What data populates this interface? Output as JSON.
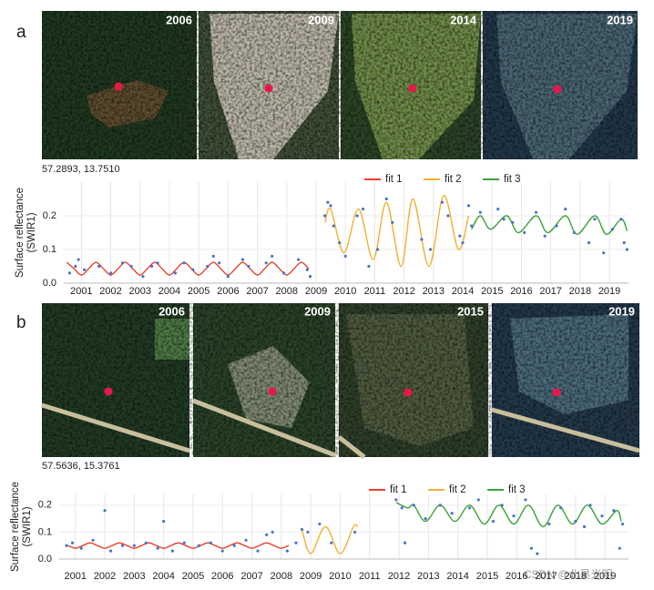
{
  "panels": [
    {
      "label": "a",
      "images": [
        "2006",
        "2009",
        "2014",
        "2019"
      ],
      "coordinates": "57.2893, 13.7510"
    },
    {
      "label": "b",
      "images": [
        "2006",
        "2009",
        "2015",
        "2019"
      ],
      "coordinates": "57.5636, 15.3761"
    }
  ],
  "chart_data": [
    {
      "type": "line",
      "y_label": [
        "Surface reflectance",
        "(SWIR1)"
      ],
      "xlim": [
        2000.4,
        2019.65
      ],
      "ylim": [
        0,
        0.3
      ],
      "xticks": [
        2001,
        2002,
        2003,
        2004,
        2005,
        2006,
        2007,
        2008,
        2009,
        2010,
        2011,
        2012,
        2013,
        2014,
        2015,
        2016,
        2017,
        2018,
        2019
      ],
      "yticks": [
        {
          "value": 0,
          "label": "0.0"
        },
        0.1,
        0.2
      ],
      "grid": true,
      "legend": "top-right",
      "series": [
        {
          "name": "fit 1",
          "color": "#e8412c",
          "x": [
            2000.5,
            2000.75,
            2001,
            2001.25,
            2001.5,
            2001.75,
            2002,
            2002.25,
            2002.5,
            2002.75,
            2003,
            2003.25,
            2003.5,
            2003.75,
            2004,
            2004.25,
            2004.5,
            2004.75,
            2005,
            2005.25,
            2005.5,
            2005.75,
            2006,
            2006.25,
            2006.5,
            2006.75,
            2007,
            2007.25,
            2007.5,
            2007.75,
            2008,
            2008.25,
            2008.5,
            2008.75
          ],
          "values": [
            0.062,
            0.043,
            0.024,
            0.043,
            0.062,
            0.043,
            0.024,
            0.043,
            0.062,
            0.043,
            0.024,
            0.043,
            0.062,
            0.043,
            0.024,
            0.043,
            0.062,
            0.043,
            0.024,
            0.043,
            0.062,
            0.043,
            0.024,
            0.043,
            0.062,
            0.043,
            0.024,
            0.043,
            0.062,
            0.043,
            0.024,
            0.043,
            0.062,
            0.043
          ]
        },
        {
          "name": "fit 2",
          "color": "#f2b134",
          "x": [
            2009.3,
            2009.5,
            2009.95,
            2010.45,
            2010.95,
            2011.4,
            2011.9,
            2012.3,
            2012.85,
            2013.35,
            2013.85,
            2014.2
          ],
          "values": [
            0.18,
            0.22,
            0.09,
            0.22,
            0.07,
            0.24,
            0.05,
            0.25,
            0.05,
            0.26,
            0.1,
            0.2
          ]
        },
        {
          "name": "fit 3",
          "color": "#3aa33a",
          "x": [
            2014.3,
            2014.6,
            2014.95,
            2015.5,
            2015.9,
            2016.5,
            2016.9,
            2017.5,
            2017.9,
            2018.5,
            2018.9,
            2019.4,
            2019.6
          ],
          "values": [
            0.16,
            0.2,
            0.16,
            0.2,
            0.15,
            0.2,
            0.15,
            0.2,
            0.145,
            0.2,
            0.145,
            0.19,
            0.155
          ]
        }
      ],
      "points": {
        "color": "#4a74c9",
        "x": [
          2000.6,
          2000.8,
          2000.9,
          2001.1,
          2001.6,
          2002.0,
          2002.4,
          2002.7,
          2003.1,
          2003.4,
          2003.6,
          2004.2,
          2004.5,
          2004.8,
          2005.3,
          2005.5,
          2005.7,
          2006.0,
          2006.5,
          2006.7,
          2007.3,
          2007.5,
          2007.9,
          2008.4,
          2008.7,
          2008.8,
          2009.3,
          2009.4,
          2009.5,
          2009.6,
          2009.8,
          2010.0,
          2010.4,
          2010.6,
          2010.8,
          2011.1,
          2011.4,
          2011.6,
          2012.6,
          2012.9,
          2013.3,
          2013.5,
          2013.9,
          2014.0,
          2014.2,
          2014.3,
          2014.6,
          2015.2,
          2015.4,
          2015.7,
          2016.1,
          2016.5,
          2016.8,
          2017.2,
          2017.5,
          2017.8,
          2018.3,
          2018.5,
          2018.8,
          2019.1,
          2019.4,
          2019.5,
          2019.6
        ],
        "y": [
          0.03,
          0.05,
          0.07,
          0.04,
          0.05,
          0.03,
          0.06,
          0.05,
          0.02,
          0.05,
          0.06,
          0.03,
          0.06,
          0.04,
          0.05,
          0.08,
          0.06,
          0.02,
          0.07,
          0.05,
          0.06,
          0.08,
          0.03,
          0.07,
          0.04,
          0.02,
          0.2,
          0.24,
          0.23,
          0.17,
          0.12,
          0.08,
          0.2,
          0.22,
          0.05,
          0.1,
          0.25,
          0.18,
          0.13,
          0.1,
          0.24,
          0.2,
          0.14,
          0.12,
          0.23,
          0.17,
          0.21,
          0.22,
          0.19,
          0.18,
          0.15,
          0.21,
          0.14,
          0.17,
          0.22,
          0.15,
          0.12,
          0.19,
          0.09,
          0.16,
          0.19,
          0.12,
          0.1
        ]
      }
    },
    {
      "type": "line",
      "y_label": [
        "Surface reflectance",
        "(SWIR1)"
      ],
      "xlim": [
        2000.45,
        2019.8
      ],
      "ylim": [
        0,
        0.24
      ],
      "xticks": [
        2001,
        2002,
        2003,
        2004,
        2005,
        2006,
        2007,
        2008,
        2009,
        2010,
        2011,
        2012,
        2013,
        2014,
        2015,
        2016,
        2017,
        2018,
        2019
      ],
      "yticks": [
        {
          "value": 0,
          "label": "0.0"
        },
        0.1,
        0.2
      ],
      "grid": true,
      "legend": "top-right",
      "series": [
        {
          "name": "fit 1",
          "color": "#e8412c",
          "x": [
            2000.75,
            2001,
            2001.25,
            2001.5,
            2001.75,
            2002,
            2002.25,
            2002.5,
            2002.75,
            2003,
            2003.25,
            2003.5,
            2003.75,
            2004,
            2004.25,
            2004.5,
            2004.75,
            2005,
            2005.25,
            2005.5,
            2005.75,
            2006,
            2006.25,
            2006.5,
            2006.75,
            2007,
            2007.25,
            2007.5,
            2007.75,
            2008,
            2008.25
          ],
          "values": [
            0.05,
            0.04,
            0.05,
            0.06,
            0.05,
            0.04,
            0.05,
            0.06,
            0.05,
            0.04,
            0.05,
            0.06,
            0.05,
            0.04,
            0.05,
            0.06,
            0.05,
            0.04,
            0.05,
            0.06,
            0.05,
            0.04,
            0.05,
            0.06,
            0.05,
            0.04,
            0.05,
            0.06,
            0.05,
            0.04,
            0.05
          ]
        },
        {
          "name": "fit 2",
          "color": "#f2b134",
          "x": [
            2008.7,
            2009.0,
            2009.5,
            2010.0,
            2010.45,
            2010.6
          ],
          "values": [
            0.11,
            0.02,
            0.12,
            0.02,
            0.12,
            0.12
          ]
        },
        {
          "name": "fit 3",
          "color": "#3aa33a",
          "x": [
            2011.9,
            2012.3,
            2012.5,
            2012.9,
            2013.4,
            2013.9,
            2014.4,
            2014.9,
            2015.4,
            2015.9,
            2016.4,
            2016.9,
            2017.4,
            2017.9,
            2018.4,
            2018.9,
            2019.4,
            2019.55
          ],
          "values": [
            0.21,
            0.19,
            0.2,
            0.14,
            0.2,
            0.14,
            0.2,
            0.13,
            0.2,
            0.13,
            0.2,
            0.12,
            0.2,
            0.13,
            0.2,
            0.13,
            0.18,
            0.14
          ]
        }
      ],
      "points": {
        "color": "#4a74c9",
        "x": [
          2000.7,
          2000.9,
          2001.2,
          2001.6,
          2002.0,
          2002.2,
          2002.6,
          2003.0,
          2003.4,
          2003.8,
          2004.0,
          2004.3,
          2004.7,
          2005.2,
          2005.6,
          2006.0,
          2006.4,
          2006.8,
          2007.2,
          2007.5,
          2007.7,
          2008.2,
          2008.5,
          2008.7,
          2008.9,
          2009.3,
          2009.7,
          2010.5,
          2011.9,
          2012.1,
          2012.2,
          2012.5,
          2012.9,
          2013.4,
          2013.8,
          2014.4,
          2014.7,
          2015.2,
          2015.5,
          2015.9,
          2016.3,
          2016.5,
          2016.7,
          2017.1,
          2017.5,
          2018.0,
          2018.3,
          2018.5,
          2018.9,
          2019.3,
          2019.5,
          2019.6
        ],
        "y": [
          0.05,
          0.06,
          0.04,
          0.07,
          0.18,
          0.03,
          0.05,
          0.05,
          0.06,
          0.04,
          0.14,
          0.03,
          0.06,
          0.05,
          0.06,
          0.03,
          0.05,
          0.07,
          0.03,
          0.09,
          0.1,
          0.03,
          0.06,
          0.11,
          0.1,
          0.13,
          0.06,
          0.1,
          0.22,
          0.19,
          0.06,
          0.2,
          0.15,
          0.2,
          0.17,
          0.19,
          0.22,
          0.14,
          0.2,
          0.16,
          0.22,
          0.04,
          0.02,
          0.13,
          0.19,
          0.14,
          0.12,
          0.2,
          0.16,
          0.18,
          0.04,
          0.13
        ]
      }
    }
  ],
  "watermark": "CSDN @北昊光明"
}
